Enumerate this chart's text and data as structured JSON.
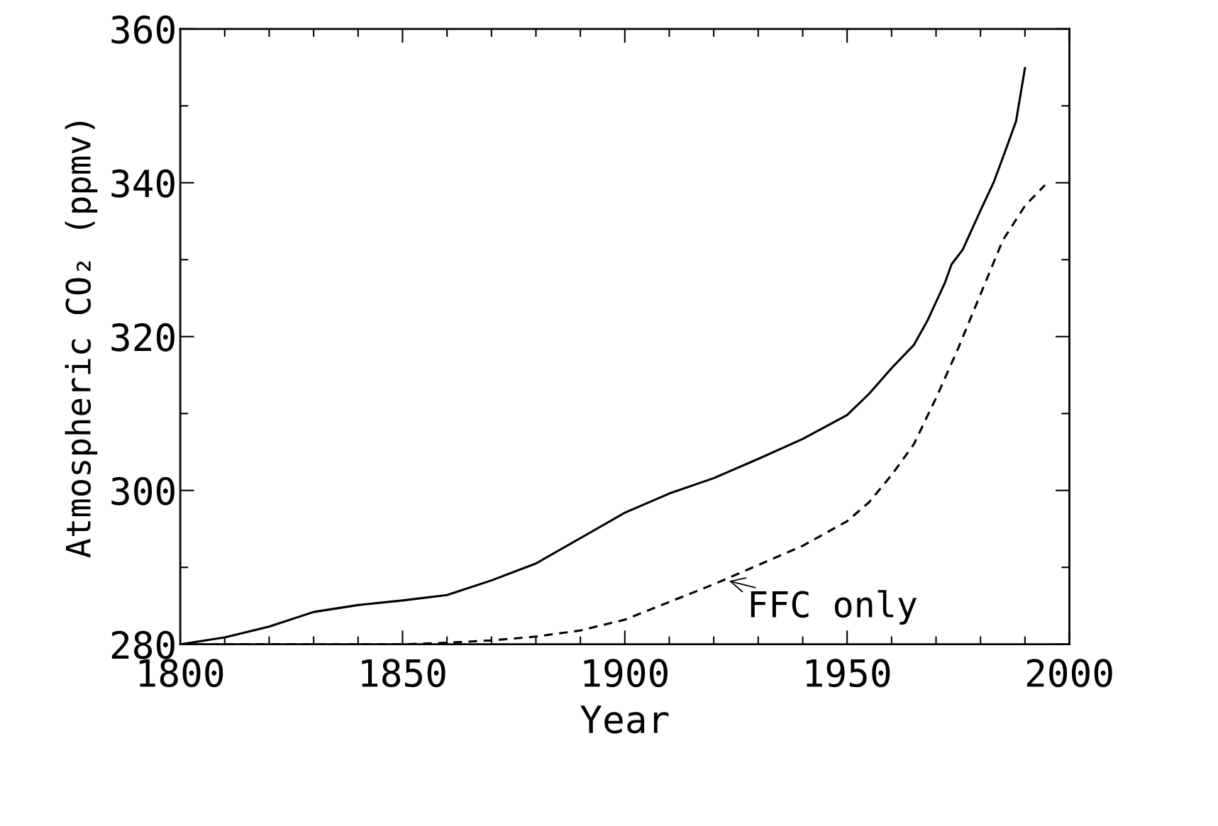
{
  "chart_data": {
    "type": "line",
    "xlabel": "Year",
    "ylabel": "Atmospheric CO₂ (ppmv)",
    "xlim": [
      1800,
      2000
    ],
    "ylim": [
      280,
      360
    ],
    "xticks": [
      1800,
      {
        "value": 1810,
        "label": null
      },
      {
        "value": 1820,
        "label": null
      },
      {
        "value": 1830,
        "label": null
      },
      {
        "value": 1840,
        "label": null
      },
      1850,
      {
        "value": 1860,
        "label": null
      },
      {
        "value": 1870,
        "label": null
      },
      {
        "value": 1880,
        "label": null
      },
      {
        "value": 1890,
        "label": null
      },
      1900,
      {
        "value": 1910,
        "label": null
      },
      {
        "value": 1920,
        "label": null
      },
      {
        "value": 1930,
        "label": null
      },
      {
        "value": 1940,
        "label": null
      },
      1950,
      {
        "value": 1960,
        "label": null
      },
      {
        "value": 1970,
        "label": null
      },
      {
        "value": 1980,
        "label": null
      },
      {
        "value": 1990,
        "label": null
      },
      2000
    ],
    "yticks": [
      280,
      {
        "value": 290,
        "label": null
      },
      300,
      {
        "value": 310,
        "label": null
      },
      320,
      {
        "value": 330,
        "label": null
      },
      340,
      {
        "value": 350,
        "label": null
      },
      360
    ],
    "grid": false,
    "legend": false,
    "marker": "none",
    "series": [
      {
        "color": "#000000",
        "line_style": "solid",
        "x": [
          1800,
          1810,
          1820,
          1830,
          1840,
          1850,
          1860,
          1870,
          1880,
          1890,
          1900,
          1910,
          1920,
          1930,
          1940,
          1950,
          1955,
          1960,
          1965,
          1968,
          1972,
          1973.5,
          1976,
          1980,
          1983,
          1986,
          1988,
          1990
        ],
        "values": [
          280,
          280.9,
          282.3,
          284.2,
          285.1,
          285.7,
          286.4,
          288.3,
          290.5,
          293.8,
          297.1,
          299.6,
          301.6,
          304.1,
          306.7,
          309.8,
          312.6,
          315.9,
          318.9,
          322,
          327,
          329.4,
          331.3,
          336.4,
          340.1,
          344.8,
          348,
          354.9
        ]
      },
      {
        "color": "#000000",
        "line_style": "dashed",
        "x": [
          1800,
          1850,
          1860,
          1870,
          1880,
          1890,
          1900,
          1910,
          1920,
          1930,
          1940,
          1950,
          1955,
          1960,
          1965,
          1970,
          1975,
          1980,
          1985,
          1990,
          1994.5
        ],
        "values": [
          280,
          280,
          280.2,
          280.5,
          281,
          281.8,
          283.2,
          285.5,
          287.8,
          290.3,
          292.8,
          296,
          298.5,
          302,
          306,
          312,
          318.5,
          325.5,
          332.5,
          337,
          339.7
        ]
      }
    ],
    "annotations": [
      {
        "text": "FFC only",
        "x": 1923,
        "y": 288.3
      }
    ]
  }
}
